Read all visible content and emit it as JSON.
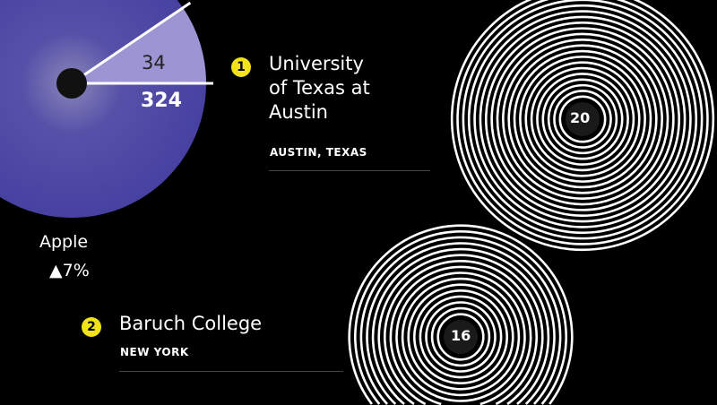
{
  "chart_data": [
    {
      "type": "pie",
      "label": "Apple",
      "change": "▲7%",
      "slices": [
        {
          "value": 34,
          "label": "34",
          "color": "#9d95d3"
        },
        {
          "value": 324,
          "label": "324",
          "color": "#4b47a2"
        }
      ]
    },
    {
      "type": "concentric-rings",
      "items": [
        {
          "rank": "1",
          "name_lines": [
            "University",
            "of Texas at",
            "Austin"
          ],
          "location": "AUSTIN, TEXAS",
          "value": 20,
          "label": "20"
        },
        {
          "rank": "2",
          "name_lines": [
            "Baruch College"
          ],
          "location": "NEW YORK",
          "value": 16,
          "label": "16"
        }
      ]
    }
  ],
  "colors": {
    "background": "#000000",
    "badge": "#f2e21b",
    "ring": "#ffffff"
  }
}
